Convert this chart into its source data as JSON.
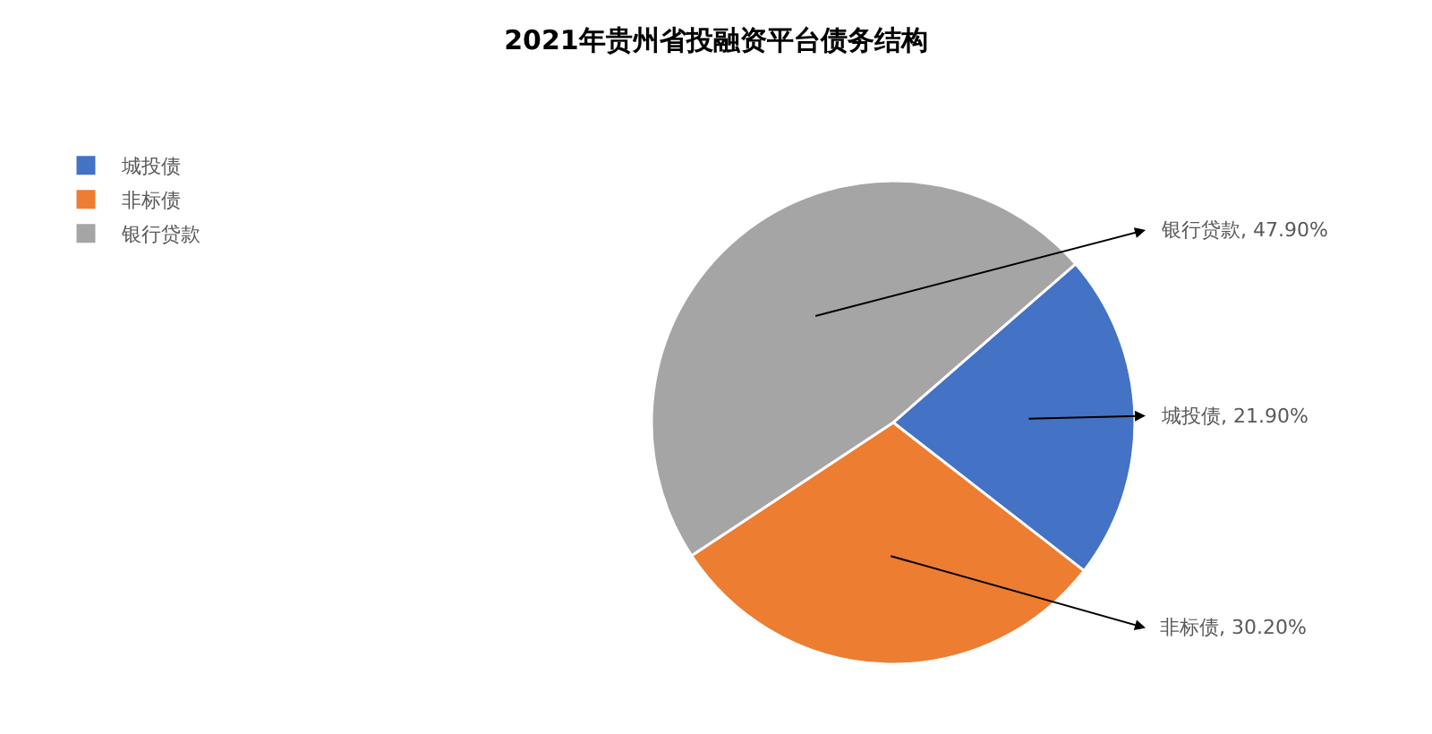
{
  "chart_data": {
    "type": "pie",
    "title": "2021年贵州省投融资平台债务结构",
    "categories": [
      "城投债",
      "非标债",
      "银行贷款"
    ],
    "values": [
      21.9,
      30.2,
      47.9
    ],
    "colors": [
      "#4472c4",
      "#ed7d31",
      "#a5a5a5"
    ],
    "value_labels": [
      "城投债, 21.90%",
      "非标债, 30.20%",
      "银行贷款, 47.90%"
    ],
    "legend": "left"
  }
}
